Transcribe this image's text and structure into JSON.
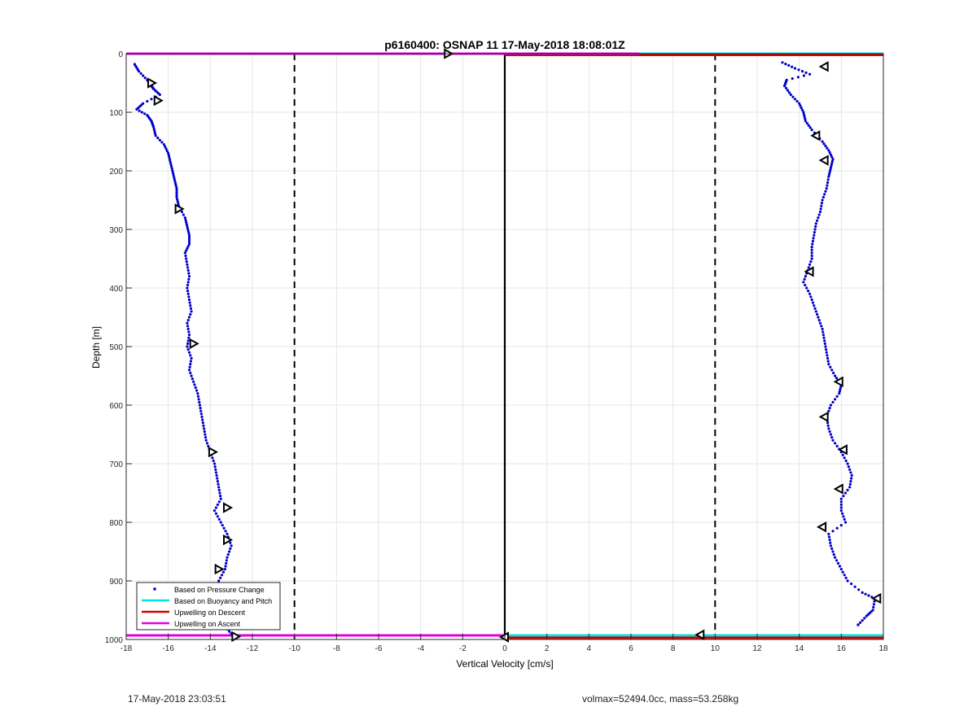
{
  "chart_data": {
    "type": "scatter",
    "title": "p6160400: OSNAP 11 17-May-2018 18:08:01Z",
    "xlabel": "Vertical Velocity [cm/s]",
    "ylabel": "Depth [m]",
    "xlim": [
      -18,
      18
    ],
    "ylim": [
      1000,
      0
    ],
    "y_reversed": true,
    "grid": true,
    "x_ticks": [
      -18,
      -16,
      -14,
      -12,
      -10,
      -8,
      -6,
      -4,
      -2,
      0,
      2,
      4,
      6,
      8,
      10,
      12,
      14,
      16,
      18
    ],
    "y_ticks": [
      0,
      100,
      200,
      300,
      400,
      500,
      600,
      700,
      800,
      900,
      1000
    ],
    "legend_position": "bottom-left",
    "legend": [
      "Based on Pressure Change",
      "Based on Buoyancy and Pitch",
      "Upwelling on Descent",
      "Upwelling on Ascent"
    ],
    "colors": {
      "pressure": "#0000cc",
      "buoyancy": "#00e5e5",
      "descent": "#d40000",
      "ascent": "#e100e1",
      "reference": "#000000"
    },
    "reference_lines": {
      "dashed_x": [
        -10,
        10
      ],
      "solid_x": [
        0
      ]
    },
    "series": [
      {
        "name": "Based on Pressure Change",
        "marker": "dot",
        "profile_left": [
          [
            -17.6,
            18
          ],
          [
            -17.4,
            30
          ],
          [
            -17.0,
            45
          ],
          [
            -16.8,
            55
          ],
          [
            -16.7,
            60
          ],
          [
            -16.4,
            70
          ],
          [
            -17.2,
            85
          ],
          [
            -17.5,
            95
          ],
          [
            -17.0,
            105
          ],
          [
            -16.8,
            115
          ],
          [
            -16.7,
            125
          ],
          [
            -16.6,
            140
          ],
          [
            -16.2,
            155
          ],
          [
            -16.0,
            170
          ],
          [
            -15.9,
            185
          ],
          [
            -15.8,
            200
          ],
          [
            -15.7,
            215
          ],
          [
            -15.6,
            230
          ],
          [
            -15.6,
            245
          ],
          [
            -15.5,
            260
          ],
          [
            -15.2,
            280
          ],
          [
            -15.1,
            295
          ],
          [
            -15.0,
            310
          ],
          [
            -15.0,
            325
          ],
          [
            -15.2,
            340
          ],
          [
            -15.1,
            360
          ],
          [
            -15.0,
            380
          ],
          [
            -15.1,
            400
          ],
          [
            -15.0,
            420
          ],
          [
            -14.9,
            440
          ],
          [
            -15.1,
            460
          ],
          [
            -15.0,
            480
          ],
          [
            -15.1,
            500
          ],
          [
            -14.9,
            520
          ],
          [
            -15.0,
            540
          ],
          [
            -14.8,
            560
          ],
          [
            -14.6,
            580
          ],
          [
            -14.5,
            600
          ],
          [
            -14.4,
            620
          ],
          [
            -14.3,
            640
          ],
          [
            -14.2,
            660
          ],
          [
            -14.0,
            680
          ],
          [
            -13.8,
            700
          ],
          [
            -13.7,
            720
          ],
          [
            -13.6,
            740
          ],
          [
            -13.5,
            760
          ],
          [
            -13.8,
            780
          ],
          [
            -13.5,
            800
          ],
          [
            -13.2,
            820
          ],
          [
            -13.0,
            840
          ],
          [
            -13.2,
            860
          ],
          [
            -13.3,
            880
          ],
          [
            -13.6,
            900
          ],
          [
            -13.8,
            920
          ],
          [
            -14.0,
            940
          ],
          [
            -13.8,
            960
          ],
          [
            -13.4,
            975
          ],
          [
            -13.0,
            990
          ]
        ],
        "profile_right": [
          [
            13.2,
            15
          ],
          [
            13.8,
            25
          ],
          [
            14.5,
            35
          ],
          [
            13.4,
            45
          ],
          [
            13.3,
            55
          ],
          [
            13.6,
            70
          ],
          [
            14.0,
            85
          ],
          [
            14.2,
            100
          ],
          [
            14.3,
            115
          ],
          [
            14.6,
            130
          ],
          [
            15.1,
            150
          ],
          [
            15.4,
            165
          ],
          [
            15.6,
            180
          ],
          [
            15.5,
            195
          ],
          [
            15.4,
            210
          ],
          [
            15.3,
            230
          ],
          [
            15.1,
            250
          ],
          [
            15.0,
            270
          ],
          [
            14.8,
            290
          ],
          [
            14.7,
            310
          ],
          [
            14.6,
            330
          ],
          [
            14.6,
            350
          ],
          [
            14.4,
            370
          ],
          [
            14.2,
            390
          ],
          [
            14.5,
            410
          ],
          [
            14.7,
            430
          ],
          [
            14.9,
            450
          ],
          [
            15.1,
            470
          ],
          [
            15.2,
            490
          ],
          [
            15.3,
            510
          ],
          [
            15.4,
            530
          ],
          [
            15.7,
            550
          ],
          [
            16.0,
            565
          ],
          [
            15.9,
            580
          ],
          [
            15.5,
            600
          ],
          [
            15.3,
            620
          ],
          [
            15.4,
            640
          ],
          [
            15.6,
            660
          ],
          [
            16.0,
            680
          ],
          [
            16.3,
            700
          ],
          [
            16.5,
            720
          ],
          [
            16.4,
            740
          ],
          [
            16.0,
            760
          ],
          [
            16.0,
            780
          ],
          [
            16.2,
            800
          ],
          [
            15.4,
            820
          ],
          [
            15.5,
            840
          ],
          [
            15.7,
            860
          ],
          [
            16.0,
            880
          ],
          [
            16.3,
            900
          ],
          [
            17.0,
            920
          ],
          [
            17.6,
            930
          ],
          [
            17.5,
            950
          ],
          [
            17.2,
            960
          ],
          [
            16.8,
            975
          ]
        ]
      },
      {
        "name": "Based on Buoyancy and Pitch",
        "marker": "triangle",
        "points": [
          [
            -16.8,
            50
          ],
          [
            -16.5,
            80
          ],
          [
            -15.5,
            265
          ],
          [
            -14.8,
            495
          ],
          [
            -13.9,
            680
          ],
          [
            -13.2,
            775
          ],
          [
            -13.2,
            830
          ],
          [
            -13.6,
            880
          ],
          [
            -13.5,
            975
          ],
          [
            -12.8,
            995
          ],
          [
            15.2,
            22
          ],
          [
            14.8,
            140
          ],
          [
            15.2,
            182
          ],
          [
            14.5,
            372
          ],
          [
            15.9,
            560
          ],
          [
            15.2,
            620
          ],
          [
            16.1,
            676
          ],
          [
            15.9,
            743
          ],
          [
            15.1,
            808
          ],
          [
            17.7,
            930
          ],
          [
            9.3,
            992
          ],
          [
            -2.7,
            0
          ],
          [
            0,
            996
          ]
        ]
      }
    ],
    "lines": [
      {
        "name": "Based on Buoyancy and Pitch",
        "depth": 0,
        "x_from": 6.4,
        "x_to": 18
      },
      {
        "name": "Based on Buoyancy and Pitch",
        "depth": 993,
        "x_from": 0,
        "x_to": 18
      },
      {
        "name": "Upwelling on Descent",
        "depth": 2,
        "x_from": 0,
        "x_to": 18
      },
      {
        "name": "Upwelling on Descent",
        "depth": 997,
        "x_from": 0,
        "x_to": 18
      },
      {
        "name": "Upwelling on Ascent",
        "depth": 0,
        "x_from": -18,
        "x_to": 6.4
      },
      {
        "name": "Upwelling on Ascent",
        "depth": 993,
        "x_from": -18,
        "x_to": 0
      }
    ]
  },
  "footer": {
    "left": "17-May-2018 23:03:51",
    "right": "volmax=52494.0cc, mass=53.258kg"
  }
}
